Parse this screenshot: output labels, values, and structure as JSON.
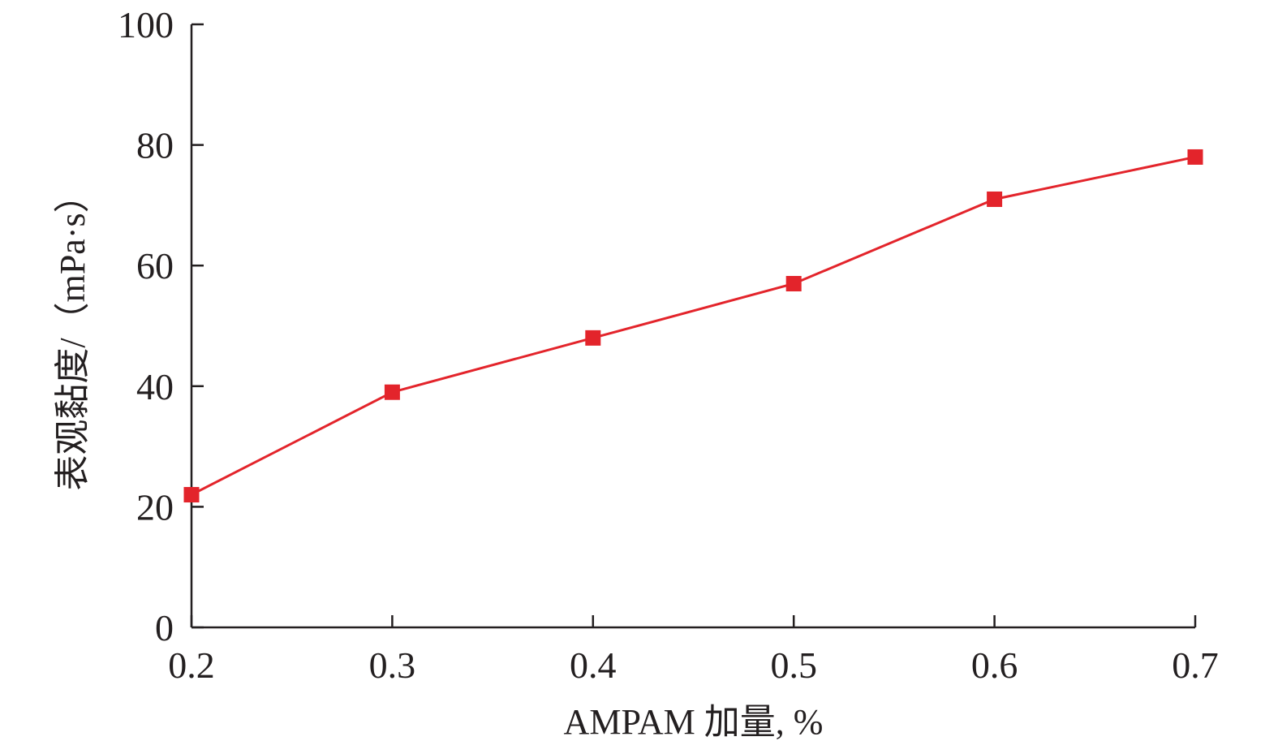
{
  "chart_data": {
    "type": "line",
    "xlabel": "AMPAM 加量, %",
    "ylabel": "表观黏度/（mPa·s）",
    "xlim": [
      0.2,
      0.7
    ],
    "ylim": [
      0,
      100
    ],
    "x_ticks": [
      "0.2",
      "0.3",
      "0.4",
      "0.5",
      "0.6",
      "0.7"
    ],
    "y_ticks": [
      "0",
      "20",
      "40",
      "60",
      "80",
      "100"
    ],
    "grid": false,
    "marker": "square",
    "series": [
      {
        "color": "#e3242b",
        "x": [
          0.2,
          0.3,
          0.4,
          0.5,
          0.6,
          0.7
        ],
        "y": [
          22,
          39,
          48,
          57,
          71,
          78
        ]
      }
    ]
  }
}
